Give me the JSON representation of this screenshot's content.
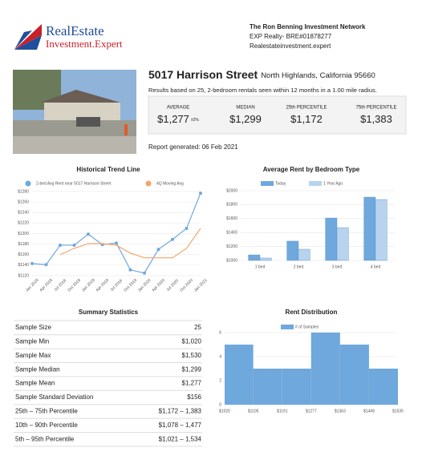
{
  "header": {
    "logo_top": "RealEstate",
    "logo_bottom": "Investment.Expert",
    "company": "The Ron Benning Investment Network",
    "license": "EXP Realty- BRE#01878277",
    "website": "Realestateinvestment.expert"
  },
  "property": {
    "address": "5017 Harrison Street",
    "city": "North Highlands, California 95660",
    "description": "Results based on 25, 2-bedroom rentals seen within 12 months in a 1.00 mile radius.",
    "report_date": "Report generated: 06 Feb 2021"
  },
  "stats": [
    {
      "label": "AVERAGE",
      "value": "$1,277",
      "note": "±2%"
    },
    {
      "label": "MEDIAN",
      "value": "$1,299"
    },
    {
      "label": "25th PERCENTILE",
      "value": "$1,172"
    },
    {
      "label": "75th PERCENTILE",
      "value": "$1,383"
    }
  ],
  "table": {
    "title": "Summary Statistics",
    "rows": [
      [
        "Sample Size",
        "25"
      ],
      [
        "Sample Min",
        "$1,020"
      ],
      [
        "Sample Max",
        "$1,530"
      ],
      [
        "Sample Median",
        "$1,299"
      ],
      [
        "Sample Mean",
        "$1,277"
      ],
      [
        "Sample Standard Deviation",
        "$156"
      ],
      [
        "25th – 75th Percentile",
        "$1,172 – 1,383"
      ],
      [
        "10th – 90th Percentile",
        "$1,078 – 1,477"
      ],
      [
        "5th – 95th Percentile",
        "$1,021 – 1,534"
      ]
    ]
  },
  "chart_data": [
    {
      "type": "line",
      "title": "Historical Trend Line",
      "categories": [
        "Jan 2018",
        "Apr 2018",
        "Jul 2018",
        "Oct 2018",
        "Jan 2019",
        "Apr 2019",
        "Jul 2019",
        "Oct 2019",
        "Jan 2020",
        "Apr 2020",
        "Jul 2020",
        "Oct 2020",
        "Jan 2021"
      ],
      "series": [
        {
          "name": "2-bed Avg Rent near 5017 Harrison Street",
          "color": "#6fa8dc",
          "values": [
            1143,
            1141,
            1178,
            1178,
            1199,
            1179,
            1182,
            1131,
            1125,
            1170,
            1189,
            1210,
            1277
          ]
        },
        {
          "name": "4Q Moving Avg",
          "color": "#f4a46c",
          "values": [
            null,
            null,
            1160,
            1172,
            1181,
            1181,
            1178,
            1163,
            1154,
            1154,
            1154,
            1172,
            1210
          ]
        }
      ],
      "ylim": [
        1120,
        1280
      ],
      "yticks": [
        {
          "value": 1120,
          "label": "$1120"
        },
        {
          "value": 1140,
          "label": "$1140"
        },
        {
          "value": 1160,
          "label": "$1160"
        },
        {
          "value": 1180,
          "label": "$1180"
        },
        {
          "value": 1200,
          "label": "$1200"
        },
        {
          "value": 1220,
          "label": "$1220"
        },
        {
          "value": 1240,
          "label": "$1240"
        },
        {
          "value": 1260,
          "label": "$1260"
        },
        {
          "value": 1280,
          "label": "$1280"
        }
      ],
      "grid": true
    },
    {
      "type": "bar",
      "title": "Average Rent by Bedroom Type",
      "categories": [
        "1 bed",
        "2 bed",
        "3 bed",
        "4 bed"
      ],
      "series": [
        {
          "name": "Today",
          "color": "#6fa8dc",
          "values": [
            1080,
            1277,
            1609,
            1908
          ]
        },
        {
          "name": "1 Year Ago",
          "color": "#b7d3ee",
          "values": [
            1035,
            1161,
            1471,
            1874
          ]
        }
      ],
      "ylim": [
        1000,
        2000
      ],
      "yticks": [
        {
          "value": 1000,
          "label": "$1000"
        },
        {
          "value": 1200,
          "label": "$1200"
        },
        {
          "value": 1400,
          "label": "$1400"
        },
        {
          "value": 1600,
          "label": "$1600"
        },
        {
          "value": 1800,
          "label": "$1800"
        },
        {
          "value": 2000,
          "label": "$2000"
        }
      ],
      "grid": true
    },
    {
      "type": "histogram",
      "title": "Rent Distribution",
      "bins": [
        {
          "value": 1020,
          "label": "$1020"
        },
        {
          "value": 1105,
          "label": "$1105"
        },
        {
          "value": 1191,
          "label": "$1191"
        },
        {
          "value": 1277,
          "label": "$1277"
        },
        {
          "value": 1363,
          "label": "$1363"
        },
        {
          "value": 1449,
          "label": "$1449"
        },
        {
          "value": 1535,
          "label": "$1535"
        }
      ],
      "series": [
        {
          "name": "# of Samples",
          "color": "#6fa8dc",
          "values": [
            5,
            3,
            3,
            6,
            5,
            3
          ]
        }
      ],
      "xlim": [
        1020,
        1535
      ],
      "ylim": [
        0,
        6
      ],
      "yticks": [
        0,
        2,
        4,
        6
      ],
      "grid": true
    }
  ]
}
